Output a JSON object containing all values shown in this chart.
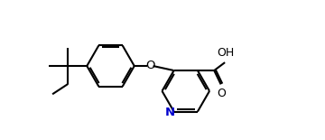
{
  "background_color": "#ffffff",
  "line_color": "#000000",
  "n_color": "#0000cd",
  "line_width": 1.5,
  "figsize": [
    3.6,
    1.55
  ],
  "dpi": 100,
  "xlim": [
    0,
    3.6
  ],
  "ylim": [
    0,
    1.55
  ]
}
